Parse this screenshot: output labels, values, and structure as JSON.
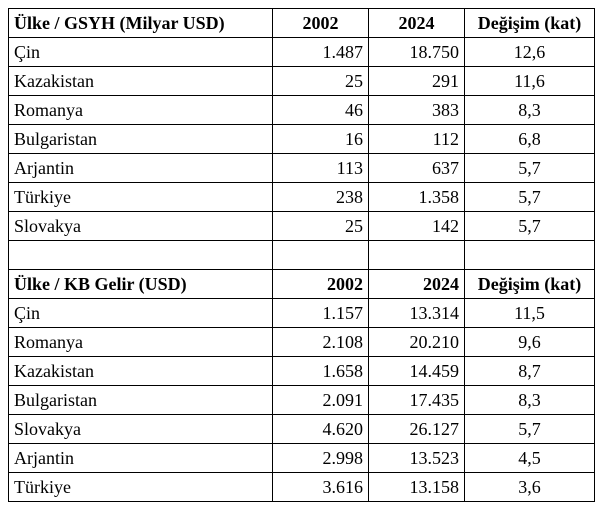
{
  "gdp": {
    "header": {
      "country": "Ülke / GSYH (Milyar USD)",
      "y2002": "2002",
      "y2024": "2024",
      "change": "Değişim (kat)"
    },
    "rows": [
      {
        "country": "Çin",
        "y2002": "1.487",
        "y2024": "18.750",
        "change": "12,6"
      },
      {
        "country": "Kazakistan",
        "y2002": "25",
        "y2024": "291",
        "change": "11,6"
      },
      {
        "country": "Romanya",
        "y2002": "46",
        "y2024": "383",
        "change": "8,3"
      },
      {
        "country": "Bulgaristan",
        "y2002": "16",
        "y2024": "112",
        "change": "6,8"
      },
      {
        "country": "Arjantin",
        "y2002": "113",
        "y2024": "637",
        "change": "5,7"
      },
      {
        "country": "Türkiye",
        "y2002": "238",
        "y2024": "1.358",
        "change": "5,7"
      },
      {
        "country": "Slovakya",
        "y2002": "25",
        "y2024": "142",
        "change": "5,7"
      }
    ]
  },
  "percapita": {
    "header": {
      "country": "Ülke / KB Gelir (USD)",
      "y2002": "2002",
      "y2024": "2024",
      "change": "Değişim (kat)"
    },
    "rows": [
      {
        "country": "Çin",
        "y2002": "1.157",
        "y2024": "13.314",
        "change": "11,5"
      },
      {
        "country": "Romanya",
        "y2002": "2.108",
        "y2024": "20.210",
        "change": "9,6"
      },
      {
        "country": "Kazakistan",
        "y2002": "1.658",
        "y2024": "14.459",
        "change": "8,7"
      },
      {
        "country": "Bulgaristan",
        "y2002": "2.091",
        "y2024": "17.435",
        "change": "8,3"
      },
      {
        "country": "Slovakya",
        "y2002": "4.620",
        "y2024": "26.127",
        "change": "5,7"
      },
      {
        "country": "Arjantin",
        "y2002": "2.998",
        "y2024": "13.523",
        "change": "4,5"
      },
      {
        "country": "Türkiye",
        "y2002": "3.616",
        "y2024": "13.158",
        "change": "3,6"
      }
    ]
  }
}
